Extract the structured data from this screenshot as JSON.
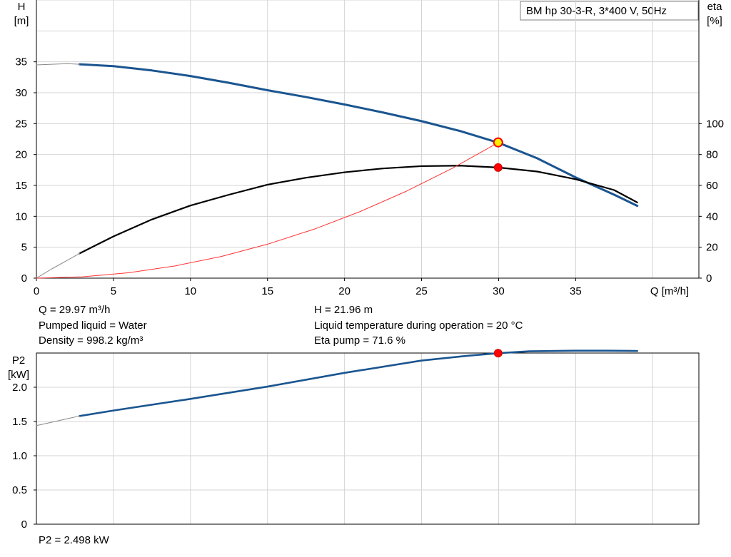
{
  "chart_data": [
    {
      "type": "line",
      "title": "BM hp 30-3-R, 3*400 V, 50Hz",
      "xlabel": "Q [m³/h]",
      "ylabel_left": [
        "H",
        "[m]"
      ],
      "ylabel_right": [
        "eta",
        "[%]"
      ],
      "xlim": [
        0,
        43
      ],
      "ylim_left": [
        0,
        45
      ],
      "ylim_right": [
        0,
        180
      ],
      "grid": true,
      "x_ticks": [
        "0",
        "5",
        "10",
        "15",
        "20",
        "25",
        "30",
        "35"
      ],
      "y_left_ticks": [
        "0",
        "5",
        "10",
        "15",
        "20",
        "25",
        "30",
        "35"
      ],
      "y_right_ticks": [
        "0",
        "20",
        "40",
        "60",
        "80",
        "100"
      ],
      "series": [
        {
          "axis": "left",
          "color": "#1a5590",
          "x": [
            2.8,
            5,
            7.5,
            10,
            12.5,
            15,
            17.5,
            20,
            22.5,
            25,
            27.5,
            30,
            32.5,
            35,
            37.5,
            39
          ],
          "values": [
            34.6,
            34.3,
            33.6,
            32.7,
            31.6,
            30.4,
            29.3,
            28.1,
            26.8,
            25.4,
            23.8,
            21.9,
            19.4,
            16.3,
            13.5,
            11.7
          ]
        },
        {
          "axis": "left",
          "color": "#888888",
          "x": [
            0,
            1,
            2,
            2.8
          ],
          "values": [
            34.5,
            34.6,
            34.7,
            34.6
          ]
        },
        {
          "axis": "right",
          "color": "#000000",
          "x": [
            2.8,
            5,
            7.5,
            10,
            12.5,
            15,
            17.5,
            20,
            22.5,
            25,
            27.5,
            30,
            32.5,
            35,
            37.5,
            39
          ],
          "values": [
            16,
            27,
            38,
            47,
            54,
            60.5,
            65,
            68.5,
            71,
            72.5,
            72.8,
            71.6,
            69,
            64,
            57,
            49
          ]
        },
        {
          "axis": "right",
          "color": "#888888",
          "x": [
            0,
            1,
            2,
            2.8
          ],
          "values": [
            0,
            6,
            11.5,
            16
          ]
        },
        {
          "axis": "left",
          "color": "#ff3333",
          "x": [
            0,
            3,
            6,
            9,
            12,
            15,
            18,
            21,
            24,
            27,
            30
          ],
          "values": [
            0,
            0.22,
            0.88,
            1.98,
            3.51,
            5.49,
            7.9,
            10.76,
            14.05,
            17.78,
            21.96
          ]
        }
      ],
      "operating_point": {
        "Q": 29.97,
        "H": 21.96,
        "eta": 71.6
      },
      "info_left": [
        "Q = 29.97 m³/h",
        "Pumped liquid = Water",
        "Density = 998.2 kg/m³"
      ],
      "info_right": [
        "H = 21.96 m",
        "Liquid temperature during operation = 20 °C",
        "Eta pump = 71.6 %"
      ]
    },
    {
      "type": "line",
      "ylabel": [
        "P2",
        "[kW]"
      ],
      "xlim": [
        0,
        43
      ],
      "ylim": [
        0,
        2.5
      ],
      "grid": true,
      "y_ticks": [
        "0",
        "0.5",
        "1.0",
        "1.5",
        "2.0"
      ],
      "series": [
        {
          "color": "#1a5590",
          "x": [
            2.8,
            5,
            10,
            15,
            20,
            25,
            28,
            30,
            32,
            35,
            37,
            39
          ],
          "values": [
            1.58,
            1.66,
            1.83,
            2.01,
            2.21,
            2.39,
            2.46,
            2.498,
            2.525,
            2.535,
            2.535,
            2.53
          ]
        },
        {
          "color": "#888888",
          "x": [
            0,
            1,
            2,
            2.8
          ],
          "values": [
            1.44,
            1.49,
            1.54,
            1.58
          ]
        }
      ],
      "operating_point": {
        "Q": 29.97,
        "P2": 2.498
      },
      "info": [
        "P2 = 2.498 kW"
      ]
    }
  ]
}
